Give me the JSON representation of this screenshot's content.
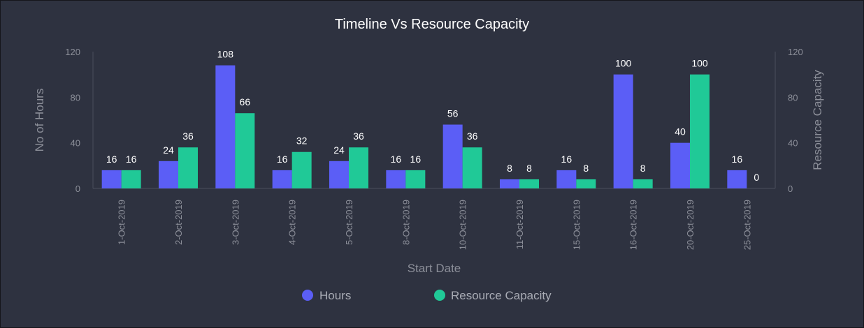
{
  "chart_data": {
    "type": "bar",
    "title": "Timeline Vs Resource Capacity",
    "xlabel": "Start Date",
    "ylabel": "No of Hours",
    "y2label": "Resource Capacity",
    "categories": [
      "1-Oct-2019",
      "2-Oct-2019",
      "3-Oct-2019",
      "4-Oct-2019",
      "5-Oct-2019",
      "8-Oct-2019",
      "10-Oct-2019",
      "11-Oct-2019",
      "15-Oct-2019",
      "16-Oct-2019",
      "20-Oct-2019",
      "25-Oct-2019"
    ],
    "series": [
      {
        "name": "Hours",
        "color": "#5b5ef6",
        "axis": "left",
        "values": [
          16,
          24,
          108,
          16,
          24,
          16,
          56,
          8,
          16,
          100,
          40,
          16
        ]
      },
      {
        "name": "Resource Capacity",
        "color": "#20c997",
        "axis": "right",
        "values": [
          16,
          36,
          66,
          32,
          36,
          16,
          36,
          8,
          8,
          8,
          100,
          0
        ]
      }
    ],
    "ylim": [
      0,
      120
    ],
    "y2lim": [
      0,
      120
    ],
    "yticks": [
      0,
      40,
      80,
      120
    ],
    "y2ticks": [
      0,
      40,
      80,
      120
    ],
    "grid": false,
    "legend": "bottom-center"
  }
}
